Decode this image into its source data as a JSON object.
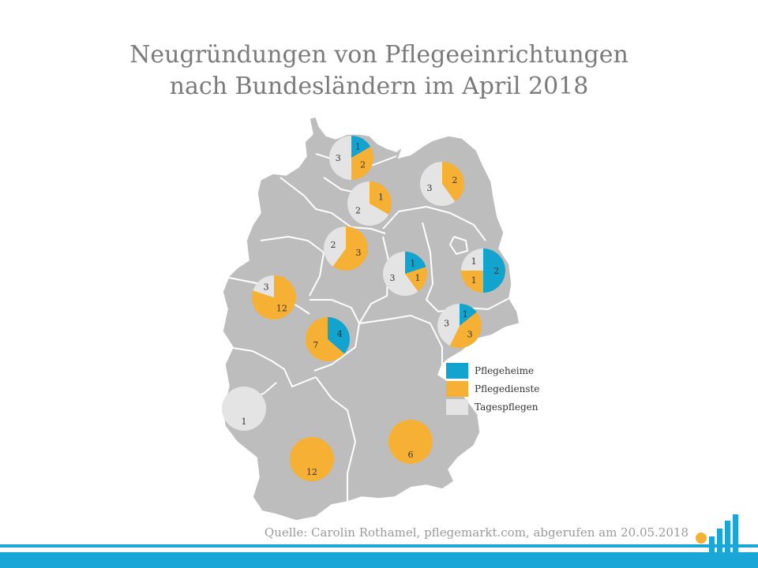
{
  "title_line1": "Neugründungen von Pflegeeinrichtungen",
  "title_line2": "nach Bundesländern im April 2018",
  "colors": {
    "Pflegeheime": "#13a3cf",
    "Pflegedienste": "#f6b034",
    "Tagespflegen": "#e4e4e4",
    "map": "#bdbdbd",
    "border": "#ffffff"
  },
  "legend": [
    {
      "key": "Pflegeheime",
      "label": "Pflegeheime"
    },
    {
      "key": "Pflegedienste",
      "label": "Pflegedienste"
    },
    {
      "key": "Tagespflegen",
      "label": "Tagespflegen"
    }
  ],
  "chart_data": {
    "type": "pie",
    "series_order": [
      "Pflegeheime",
      "Pflegedienste",
      "Tagespflegen"
    ],
    "states": [
      {
        "id": "sh",
        "Pflegeheime": 1,
        "Pflegedienste": 2,
        "Tagespflegen": 3
      },
      {
        "id": "mv",
        "Pflegeheime": 0,
        "Pflegedienste": 2,
        "Tagespflegen": 3
      },
      {
        "id": "hh",
        "Pflegeheime": 0,
        "Pflegedienste": 1,
        "Tagespflegen": 2
      },
      {
        "id": "ni",
        "Pflegeheime": 0,
        "Pflegedienste": 3,
        "Tagespflegen": 2
      },
      {
        "id": "st",
        "Pflegeheime": 1,
        "Pflegedienste": 1,
        "Tagespflegen": 3
      },
      {
        "id": "bb",
        "Pflegeheime": 2,
        "Pflegedienste": 1,
        "Tagespflegen": 1
      },
      {
        "id": "nw",
        "Pflegeheime": 0,
        "Pflegedienste": 12,
        "Tagespflegen": 3
      },
      {
        "id": "he",
        "Pflegeheime": 4,
        "Pflegedienste": 7,
        "Tagespflegen": 0
      },
      {
        "id": "sn",
        "Pflegeheime": 1,
        "Pflegedienste": 3,
        "Tagespflegen": 3
      },
      {
        "id": "sl",
        "Pflegeheime": 0,
        "Pflegedienste": 0,
        "Tagespflegen": 1
      },
      {
        "id": "bw",
        "Pflegeheime": 0,
        "Pflegedienste": 12,
        "Tagespflegen": 0
      },
      {
        "id": "by",
        "Pflegeheime": 0,
        "Pflegedienste": 6,
        "Tagespflegen": 0
      }
    ]
  },
  "source": "Quelle: Carolin Rothamel, pflegemarkt.com, abgerufen am 20.05.2018"
}
